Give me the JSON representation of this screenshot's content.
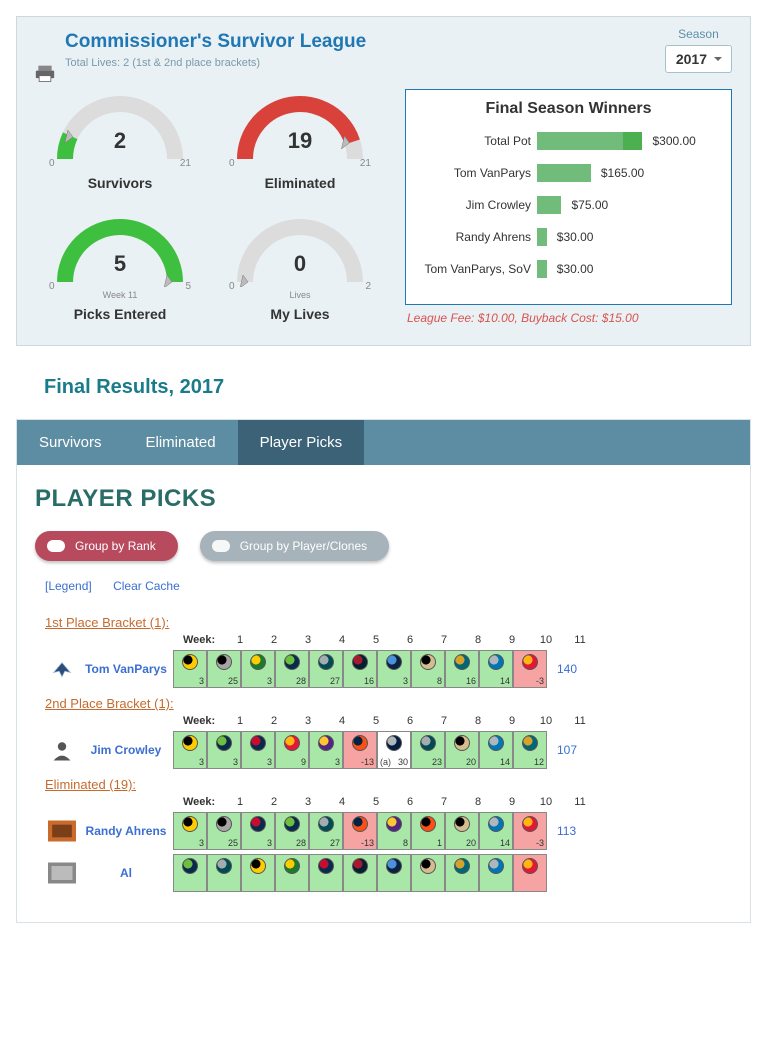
{
  "season": {
    "label": "Season",
    "value": "2017"
  },
  "league": {
    "title": "Commissioner's Survivor League",
    "subtitle": "Total Lives: 2 (1st & 2nd place brackets)"
  },
  "gauges": {
    "survivors": {
      "value": "2",
      "label": "Survivors",
      "min": "0",
      "max": "21",
      "mid": "",
      "color": "#3fbf3f",
      "fillDeg": -155
    },
    "eliminated": {
      "value": "19",
      "label": "Eliminated",
      "min": "0",
      "max": "21",
      "mid": "",
      "color": "#d9423a",
      "fillDeg": -18
    },
    "picks": {
      "value": "5",
      "label": "Picks Entered",
      "min": "0",
      "max": "5",
      "mid": "Week 11",
      "color": "#3fbf3f",
      "fillDeg": 0
    },
    "lives": {
      "value": "0",
      "label": "My Lives",
      "min": "0",
      "max": "2",
      "mid": "Lives",
      "color": "#cfcfcf",
      "fillDeg": -180
    }
  },
  "winners": {
    "title": "Final Season Winners",
    "max": 300,
    "rows": [
      {
        "label": "Total Pot",
        "amount": "$300.00",
        "value": 300,
        "overlay": 60
      },
      {
        "label": "Tom VanParys",
        "amount": "$165.00",
        "value": 165,
        "overlay": 0
      },
      {
        "label": "Jim Crowley",
        "amount": "$75.00",
        "value": 75,
        "overlay": 0
      },
      {
        "label": "Randy Ahrens",
        "amount": "$30.00",
        "value": 30,
        "overlay": 0
      },
      {
        "label": "Tom VanParys, SoV",
        "amount": "$30.00",
        "value": 30,
        "overlay": 0
      }
    ],
    "fee_note": "League Fee: $10.00, Buyback Cost: $15.00"
  },
  "results_title": "Final Results, 2017",
  "tabs": {
    "items": [
      "Survivors",
      "Eliminated",
      "Player Picks"
    ],
    "active": 2
  },
  "picks": {
    "header": "PLAYER PICKS",
    "pills": {
      "active": "Group by Rank",
      "inactive": "Group by Player/Clones"
    },
    "links": {
      "legend": "[Legend]",
      "clear": "Clear Cache"
    },
    "week_label": "Week:",
    "weeks": [
      "1",
      "2",
      "3",
      "4",
      "5",
      "6",
      "7",
      "8",
      "9",
      "10",
      "11"
    ],
    "brackets": [
      {
        "title": "1st Place Bracket (1):",
        "players": [
          {
            "name": "Tom VanParys",
            "total": "140",
            "avatar": "wings",
            "cells": [
              {
                "bg": "g",
                "c1": "#ffcc00",
                "c2": "#000000",
                "score": "3"
              },
              {
                "bg": "g",
                "c1": "#a5a5a5",
                "c2": "#000000",
                "score": "25"
              },
              {
                "bg": "g",
                "c1": "#1d7a2e",
                "c2": "#ffcc00",
                "score": "3"
              },
              {
                "bg": "g",
                "c1": "#0a2a4d",
                "c2": "#6cbf3f",
                "score": "28"
              },
              {
                "bg": "g",
                "c1": "#004c54",
                "c2": "#a5acaf",
                "score": "27"
              },
              {
                "bg": "g",
                "c1": "#03202f",
                "c2": "#a71930",
                "score": "16"
              },
              {
                "bg": "g",
                "c1": "#0c2340",
                "c2": "#4b92db",
                "score": "3"
              },
              {
                "bg": "g",
                "c1": "#d3bc8d",
                "c2": "#000000",
                "score": "8"
              },
              {
                "bg": "g",
                "c1": "#006778",
                "c2": "#d7a22a",
                "score": "16"
              },
              {
                "bg": "g",
                "c1": "#0076b6",
                "c2": "#b0b7bc",
                "score": "14"
              },
              {
                "bg": "r",
                "c1": "#e31837",
                "c2": "#ffb612",
                "score": "-3"
              }
            ]
          }
        ]
      },
      {
        "title": "2nd Place Bracket (1):",
        "players": [
          {
            "name": "Jim Crowley",
            "total": "107",
            "avatar": "silhouette",
            "cells": [
              {
                "bg": "g",
                "c1": "#ffcc00",
                "c2": "#000000",
                "score": "3"
              },
              {
                "bg": "g",
                "c1": "#0a2a4d",
                "c2": "#6cbf3f",
                "score": "3"
              },
              {
                "bg": "g",
                "c1": "#0a2a4d",
                "c2": "#c60c30",
                "score": "3"
              },
              {
                "bg": "g",
                "c1": "#e31837",
                "c2": "#ffb612",
                "score": "9"
              },
              {
                "bg": "g",
                "c1": "#4f2683",
                "c2": "#ffc62f",
                "score": "3"
              },
              {
                "bg": "r",
                "c1": "#fb4f14",
                "c2": "#002244",
                "score": "-13"
              },
              {
                "bg": "w",
                "c1": "#041e42",
                "c2": "#b0b7bc",
                "score": "30",
                "note": "(a)"
              },
              {
                "bg": "g",
                "c1": "#004c54",
                "c2": "#a5acaf",
                "score": "23"
              },
              {
                "bg": "g",
                "c1": "#d3bc8d",
                "c2": "#000000",
                "score": "20"
              },
              {
                "bg": "g",
                "c1": "#0076b6",
                "c2": "#b0b7bc",
                "score": "14"
              },
              {
                "bg": "g",
                "c1": "#006778",
                "c2": "#d7a22a",
                "score": "12"
              }
            ]
          }
        ]
      },
      {
        "title": "Eliminated (19):",
        "players": [
          {
            "name": "Randy Ahrens",
            "total": "113",
            "avatar": "photo",
            "cells": [
              {
                "bg": "g",
                "c1": "#ffcc00",
                "c2": "#000000",
                "score": "3"
              },
              {
                "bg": "g",
                "c1": "#a5a5a5",
                "c2": "#000000",
                "score": "25"
              },
              {
                "bg": "g",
                "c1": "#0a2a4d",
                "c2": "#c60c30",
                "score": "3"
              },
              {
                "bg": "g",
                "c1": "#0a2a4d",
                "c2": "#6cbf3f",
                "score": "28"
              },
              {
                "bg": "g",
                "c1": "#004c54",
                "c2": "#a5acaf",
                "score": "27"
              },
              {
                "bg": "r",
                "c1": "#fb4f14",
                "c2": "#002244",
                "score": "-13"
              },
              {
                "bg": "g",
                "c1": "#4f2683",
                "c2": "#ffc62f",
                "score": "8"
              },
              {
                "bg": "g",
                "c1": "#fb4f14",
                "c2": "#000000",
                "score": "1"
              },
              {
                "bg": "g",
                "c1": "#d3bc8d",
                "c2": "#000000",
                "score": "20"
              },
              {
                "bg": "g",
                "c1": "#0076b6",
                "c2": "#b0b7bc",
                "score": "14"
              },
              {
                "bg": "r",
                "c1": "#e31837",
                "c2": "#ffb612",
                "score": "-3"
              }
            ]
          },
          {
            "name": "Al",
            "total": "",
            "avatar": "photo2",
            "cells": [
              {
                "bg": "g",
                "c1": "#0a2a4d",
                "c2": "#6cbf3f",
                "score": ""
              },
              {
                "bg": "g",
                "c1": "#004c54",
                "c2": "#a5acaf",
                "score": ""
              },
              {
                "bg": "g",
                "c1": "#ffcc00",
                "c2": "#000000",
                "score": ""
              },
              {
                "bg": "g",
                "c1": "#1d7a2e",
                "c2": "#ffcc00",
                "score": ""
              },
              {
                "bg": "g",
                "c1": "#0a2a4d",
                "c2": "#c60c30",
                "score": ""
              },
              {
                "bg": "g",
                "c1": "#03202f",
                "c2": "#a71930",
                "score": ""
              },
              {
                "bg": "g",
                "c1": "#0c2340",
                "c2": "#4b92db",
                "score": ""
              },
              {
                "bg": "g",
                "c1": "#d3bc8d",
                "c2": "#000000",
                "score": ""
              },
              {
                "bg": "g",
                "c1": "#006778",
                "c2": "#d7a22a",
                "score": ""
              },
              {
                "bg": "g",
                "c1": "#0076b6",
                "c2": "#b0b7bc",
                "score": ""
              },
              {
                "bg": "r",
                "c1": "#e31837",
                "c2": "#ffb612",
                "score": ""
              }
            ]
          }
        ]
      }
    ]
  }
}
